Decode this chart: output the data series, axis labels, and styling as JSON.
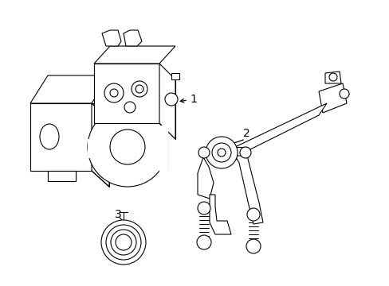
{
  "background_color": "#ffffff",
  "line_color": "#000000",
  "line_width": 0.8,
  "figsize": [
    4.89,
    3.6
  ],
  "dpi": 100,
  "label_1": "1",
  "label_2": "2",
  "label_3": "3"
}
